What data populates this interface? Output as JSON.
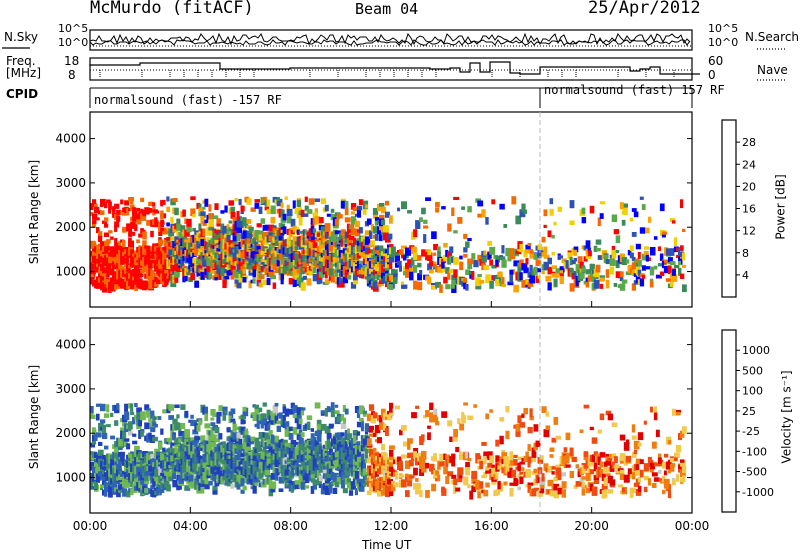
{
  "header": {
    "station": "McMurdo (fitACF)",
    "beam": "Beam 04",
    "date": "25/Apr/2012"
  },
  "panels": {
    "nsky": {
      "left_label": "N.Sky",
      "right_label": "N.Search",
      "left_ticks": [
        "10^5",
        "10^0"
      ],
      "right_ticks": [
        "10^5",
        "10^0"
      ]
    },
    "freq": {
      "left_label_1": "Freq.",
      "left_label_2": "[MHz]",
      "right_label": "Nave",
      "left_ticks": [
        "18",
        "8"
      ],
      "right_ticks": [
        "60",
        "0"
      ]
    },
    "cpid": {
      "label": "CPID",
      "segment_1": "normalsound (fast) -157 RF",
      "segment_2": "normalsound (fast) 157 RF"
    }
  },
  "colors": {
    "power_scale": [
      "#0000ff",
      "#2d52b4",
      "#3b8a5a",
      "#5aa84a",
      "#f0d000",
      "#f7a400",
      "#f56a00",
      "#ff0000"
    ],
    "velocity_scale": [
      "#1f3fbf",
      "#2f64b4",
      "#3c8a6a",
      "#6fb94d",
      "#c8c8c8",
      "#f2c94c",
      "#f07d10",
      "#f04a10",
      "#e00000"
    ]
  },
  "chart_data": [
    {
      "type": "heatmap",
      "ylabel": "Slant Range [km]",
      "ylim": [
        200,
        4600
      ],
      "y_ticks": [
        "1000",
        "2000",
        "3000",
        "4000"
      ],
      "colorbar_label": "Power [dB]",
      "colorbar_ticks": [
        "28",
        "24",
        "20",
        "16",
        "12",
        "8",
        "4"
      ],
      "colorbar_range": [
        0,
        32
      ]
    },
    {
      "type": "heatmap",
      "ylabel": "Slant Range [km]",
      "ylim": [
        200,
        4600
      ],
      "y_ticks": [
        "1000",
        "2000",
        "3000",
        "4000"
      ],
      "colorbar_label": "Velocity [m s⁻¹]",
      "colorbar_ticks": [
        "1000",
        "500",
        "100",
        "25",
        "-25",
        "-100",
        "-500",
        "-1000"
      ],
      "xlabel": "Time UT",
      "x_ticks": [
        "00:00",
        "04:00",
        "08:00",
        "12:00",
        "16:00",
        "20:00",
        "00:00"
      ],
      "xlim_hours": [
        0,
        24
      ]
    }
  ]
}
